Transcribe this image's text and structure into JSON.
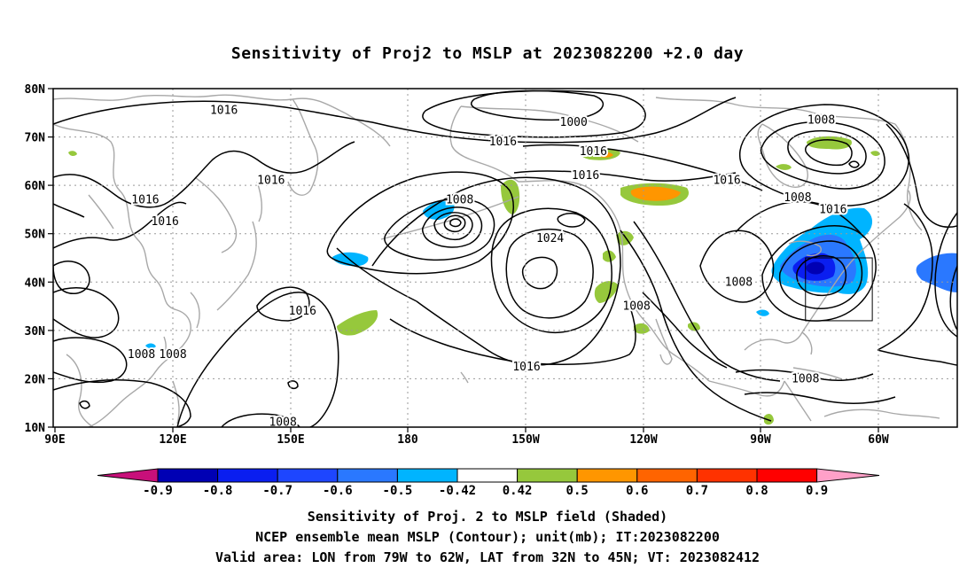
{
  "title": "Sensitivity of Proj2 to MSLP at 2023082200 +2.0 day",
  "map": {
    "lat_labels": [
      "80N",
      "70N",
      "60N",
      "50N",
      "40N",
      "30N",
      "20N",
      "10N"
    ],
    "lon_labels": [
      "90E",
      "120E",
      "150E",
      "180",
      "150W",
      "120W",
      "90W",
      "60W"
    ],
    "contour_labels": [
      {
        "text": "1016",
        "lon": 133,
        "lat": 75.5
      },
      {
        "text": "1000",
        "lon": -138,
        "lat": 73
      },
      {
        "text": "1016",
        "lon": -156,
        "lat": 69
      },
      {
        "text": "1016",
        "lon": -133,
        "lat": 67
      },
      {
        "text": "1008",
        "lon": -75,
        "lat": 73.5
      },
      {
        "text": "1016",
        "lon": 145,
        "lat": 61
      },
      {
        "text": "1016",
        "lon": -135,
        "lat": 62
      },
      {
        "text": "1016",
        "lon": -99,
        "lat": 61
      },
      {
        "text": "1016",
        "lon": 113,
        "lat": 57
      },
      {
        "text": "1008",
        "lon": -167,
        "lat": 57
      },
      {
        "text": "1008",
        "lon": -81,
        "lat": 57.5
      },
      {
        "text": "1016",
        "lon": 118,
        "lat": 52.5
      },
      {
        "text": "1016",
        "lon": -72,
        "lat": 55
      },
      {
        "text": "1024",
        "lon": -144,
        "lat": 49
      },
      {
        "text": "1008",
        "lon": -96,
        "lat": 40
      },
      {
        "text": "1016",
        "lon": 153,
        "lat": 34
      },
      {
        "text": "1008",
        "lon": -122,
        "lat": 35
      },
      {
        "text": "1016",
        "lon": -150,
        "lat": 22.5
      },
      {
        "text": "1008",
        "lon": 112,
        "lat": 25
      },
      {
        "text": "1008",
        "lon": 120,
        "lat": 25
      },
      {
        "text": "1008",
        "lon": -79,
        "lat": 20
      },
      {
        "text": "1008",
        "lon": 148,
        "lat": 11
      }
    ],
    "valid_area": {
      "lon_min": -79,
      "lon_max": -62,
      "lat_min": 32,
      "lat_max": 45
    }
  },
  "colorbar": {
    "levels": [
      "-0.9",
      "-0.8",
      "-0.7",
      "-0.6",
      "-0.5",
      "-0.42",
      "0.42",
      "0.5",
      "0.6",
      "0.7",
      "0.8",
      "0.9"
    ],
    "colors": [
      "#c8107a",
      "#0000b4",
      "#0a1ef0",
      "#1e46ff",
      "#2a78ff",
      "#00b4ff",
      "#ffffff",
      "#96c83c",
      "#ff9600",
      "#ff6400",
      "#ff3200",
      "#ff0000",
      "#ffa0c8"
    ]
  },
  "footer": {
    "line1": "Sensitivity of Proj. 2 to MSLP field (Shaded)",
    "line2": "NCEP ensemble mean MSLP (Contour); unit(mb); IT:2023082200",
    "line3": "Valid area: LON from 79W to 62W, LAT from 32N to 45N; VT: 2023082412"
  }
}
